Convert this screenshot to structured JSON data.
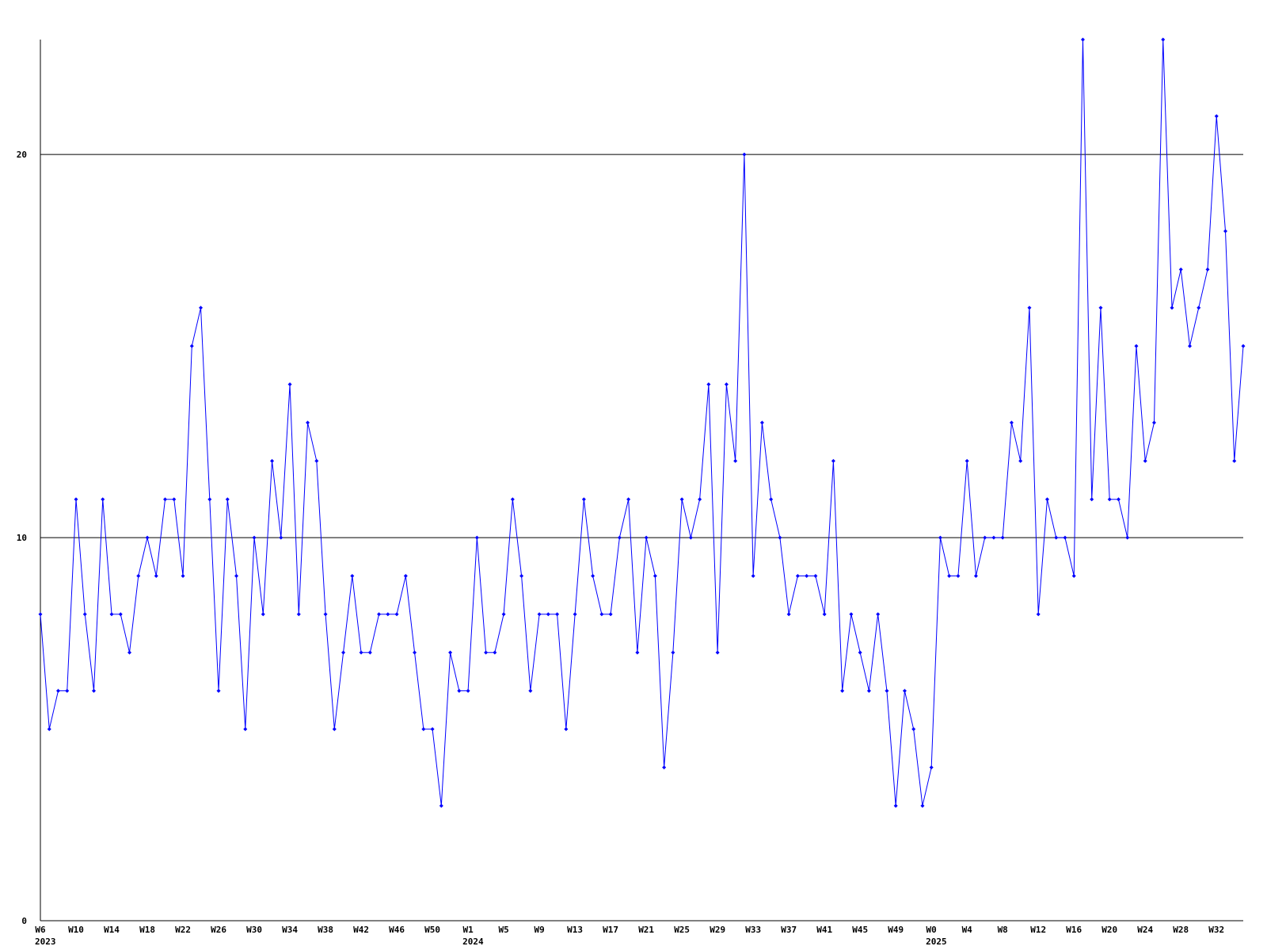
{
  "chart_data": {
    "type": "line",
    "categories": [
      "W6",
      null,
      null,
      null,
      "W10",
      null,
      null,
      null,
      "W14",
      null,
      null,
      null,
      "W18",
      null,
      null,
      null,
      "W22",
      null,
      null,
      null,
      "W26",
      null,
      null,
      null,
      "W30",
      null,
      null,
      null,
      "W34",
      null,
      null,
      null,
      "W38",
      null,
      null,
      null,
      "W42",
      null,
      null,
      null,
      "W46",
      null,
      null,
      null,
      "W50",
      null,
      null,
      null,
      "W1",
      null,
      null,
      null,
      "W5",
      null,
      null,
      null,
      "W9",
      null,
      null,
      null,
      "W13",
      null,
      null,
      null,
      "W17",
      null,
      null,
      null,
      "W21",
      null,
      null,
      null,
      "W25",
      null,
      null,
      null,
      "W29",
      null,
      null,
      null,
      "W33",
      null,
      null,
      null,
      "W37",
      null,
      null,
      null,
      "W41",
      null,
      null,
      null,
      "W45",
      null,
      null,
      null,
      "W49",
      null,
      null,
      null,
      "W0",
      null,
      null,
      null,
      "W4",
      null,
      null,
      null,
      "W8",
      null,
      null,
      null,
      "W12",
      null,
      null,
      null,
      "W16",
      null,
      null,
      null,
      "W20",
      null,
      null,
      null,
      "W24",
      null,
      null,
      null,
      "W28",
      null,
      null,
      null,
      "W32",
      null,
      null,
      null
    ],
    "year_labels": [
      "2023",
      null,
      null,
      null,
      null,
      null,
      null,
      null,
      null,
      null,
      null,
      null,
      null,
      null,
      null,
      null,
      null,
      null,
      null,
      null,
      null,
      null,
      null,
      null,
      null,
      null,
      null,
      null,
      null,
      null,
      null,
      null,
      null,
      null,
      null,
      null,
      null,
      null,
      null,
      null,
      null,
      null,
      null,
      null,
      null,
      null,
      null,
      null,
      "2024",
      null,
      null,
      null,
      null,
      null,
      null,
      null,
      null,
      null,
      null,
      null,
      null,
      null,
      null,
      null,
      null,
      null,
      null,
      null,
      null,
      null,
      null,
      null,
      null,
      null,
      null,
      null,
      null,
      null,
      null,
      null,
      null,
      null,
      null,
      null,
      null,
      null,
      null,
      null,
      null,
      null,
      null,
      null,
      null,
      null,
      null,
      null,
      null,
      null,
      null,
      null,
      "2025",
      null,
      null,
      null,
      null,
      null,
      null,
      null,
      null,
      null,
      null,
      null,
      null,
      null,
      null,
      null,
      null,
      null,
      null,
      null,
      null,
      null,
      null,
      null,
      null,
      null,
      null,
      null,
      null,
      null,
      null,
      null,
      null,
      null,
      null,
      null
    ],
    "values": [
      8,
      5,
      6,
      6,
      11,
      8,
      6,
      11,
      8,
      8,
      7,
      9,
      10,
      9,
      11,
      11,
      9,
      15,
      16,
      11,
      6,
      11,
      9,
      5,
      10,
      8,
      12,
      10,
      14,
      8,
      13,
      12,
      8,
      5,
      7,
      9,
      7,
      7,
      8,
      8,
      8,
      9,
      7,
      5,
      5,
      3,
      7,
      6,
      6,
      10,
      7,
      7,
      8,
      11,
      9,
      6,
      8,
      8,
      8,
      5,
      8,
      11,
      9,
      8,
      8,
      10,
      11,
      7,
      10,
      9,
      4,
      7,
      11,
      10,
      11,
      14,
      7,
      14,
      12,
      20,
      9,
      13,
      11,
      10,
      8,
      9,
      9,
      9,
      8,
      12,
      6,
      8,
      7,
      6,
      8,
      6,
      3,
      6,
      5,
      3,
      4,
      10,
      9,
      9,
      12,
      9,
      10,
      10,
      10,
      13,
      12,
      16,
      8,
      11,
      10,
      10,
      9,
      23,
      11,
      16,
      11,
      11,
      10,
      15,
      12,
      13,
      23,
      16,
      17,
      15,
      16,
      17,
      21,
      18,
      12,
      15
    ],
    "color": "#0000ff",
    "ylim": [
      0,
      23
    ],
    "yticks": [
      0,
      10,
      20
    ],
    "grid": true
  }
}
